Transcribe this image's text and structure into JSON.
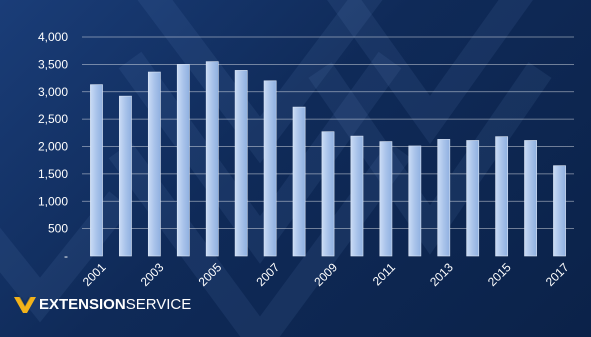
{
  "chart_data": {
    "type": "bar",
    "categories": [
      "2001",
      "2002",
      "2003",
      "2004",
      "2005",
      "2006",
      "2007",
      "2008",
      "2009",
      "2010",
      "2011",
      "2012",
      "2013",
      "2014",
      "2015",
      "2016",
      "2017"
    ],
    "tick_labels_x": [
      "2001",
      "2003",
      "2005",
      "2007",
      "2009",
      "2011",
      "2013",
      "2015",
      "2017"
    ],
    "values": [
      3130,
      2920,
      3360,
      3500,
      3550,
      3390,
      3200,
      2720,
      2270,
      2190,
      2090,
      2010,
      2130,
      2110,
      2180,
      2110,
      1650
    ],
    "ylim": [
      0,
      4000
    ],
    "y_ticks": [
      0,
      500,
      1000,
      1500,
      2000,
      2500,
      3000,
      3500,
      4000
    ],
    "y_tick_labels": [
      "-",
      "500",
      "1,000",
      "1,500",
      "2,000",
      "2,500",
      "3,000",
      "3,500",
      "4,000"
    ],
    "grid": true
  },
  "branding": {
    "logo_text_bold": "EXTENSION",
    "logo_text_regular": "SERVICE",
    "logo_mark_color": "#f2b21a",
    "background_color": "#0f2a58",
    "bar_color": "#a9c3ea"
  }
}
